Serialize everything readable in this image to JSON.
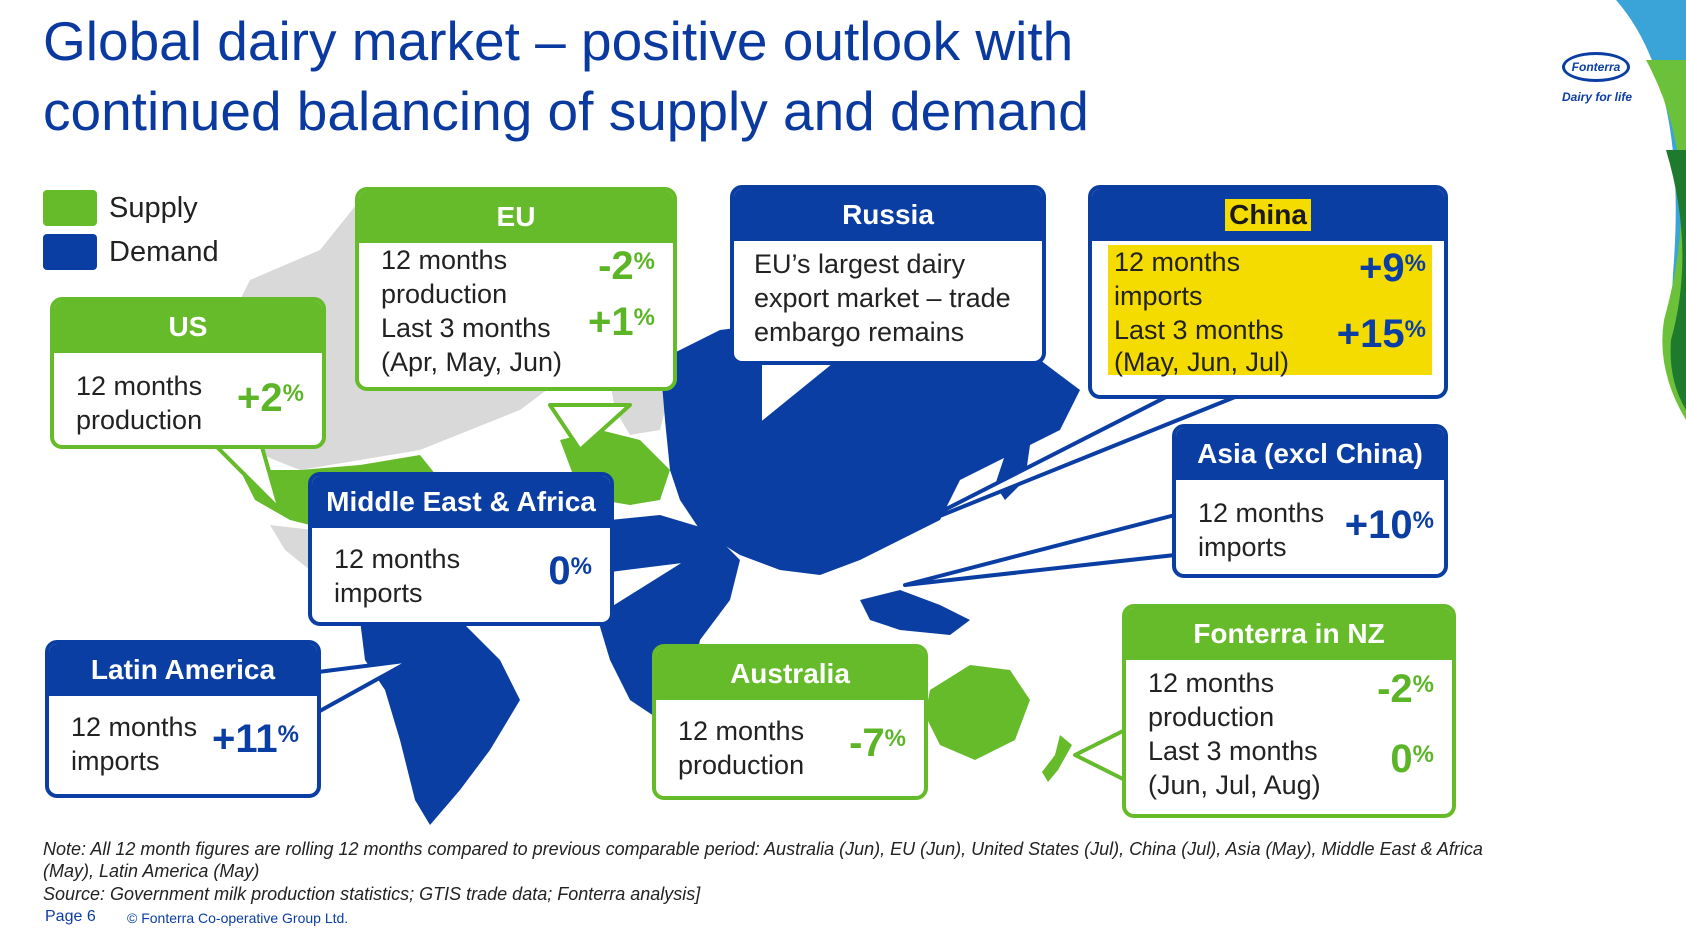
{
  "title": {
    "line1": "Global dairy market – positive outlook with",
    "line2": "continued balancing of supply and demand"
  },
  "logo": {
    "name": "Fonterra",
    "tagline": "Dairy for life"
  },
  "legend": {
    "supply": "Supply",
    "demand": "Demand",
    "supply_color": "#66bb2a",
    "demand_color": "#0b3ea3"
  },
  "regions": {
    "us": {
      "title": "US",
      "label1": "12 months",
      "label2": "production",
      "value": "+2",
      "unit": "%"
    },
    "eu": {
      "title": "EU",
      "label1": "12 months",
      "label2": "production",
      "label3": "Last 3 months",
      "label4": "(Apr, May, Jun)",
      "value1": "-2",
      "value2": "+1",
      "unit": "%"
    },
    "russia": {
      "title": "Russia",
      "line1": "EU’s largest dairy",
      "line2": "export market – trade",
      "line3": "embargo remains"
    },
    "china": {
      "title": "China",
      "label1": "12 months",
      "label2": "imports",
      "label3": "Last 3 months",
      "label4": "(May, Jun, Jul)",
      "value1": "+9",
      "value2": "+15",
      "unit": "%"
    },
    "asia": {
      "title": "Asia (excl China)",
      "label1": "12 months",
      "label2": "imports",
      "value": "+10",
      "unit": "%"
    },
    "mea": {
      "title": "Middle East & Africa",
      "label1": "12 months",
      "label2": "imports",
      "value": "0",
      "unit": "%"
    },
    "latam": {
      "title": "Latin America",
      "label1": "12 months",
      "label2": "imports",
      "value": "+11",
      "unit": "%"
    },
    "australia": {
      "title": "Australia",
      "label1": "12 months",
      "label2": "production",
      "value": "-7",
      "unit": "%"
    },
    "nz": {
      "title": "Fonterra in NZ",
      "label1": "12 months",
      "label2": "production",
      "label3": "Last 3 months",
      "label4": "(Jun, Jul, Aug)",
      "value1": "-2",
      "value2": "0",
      "unit": "%"
    }
  },
  "note": "Note: All 12 month figures are rolling 12 months compared to previous comparable period: Australia (Jun), EU (Jun), United States (Jul), China (Jul), Asia (May), Middle East & Africa (May), Latin America (May)",
  "source": "Source: Government milk production statistics; GTIS trade data; Fonterra analysis]",
  "page": "Page 6",
  "copyright": "© Fonterra Co-operative Group Ltd."
}
